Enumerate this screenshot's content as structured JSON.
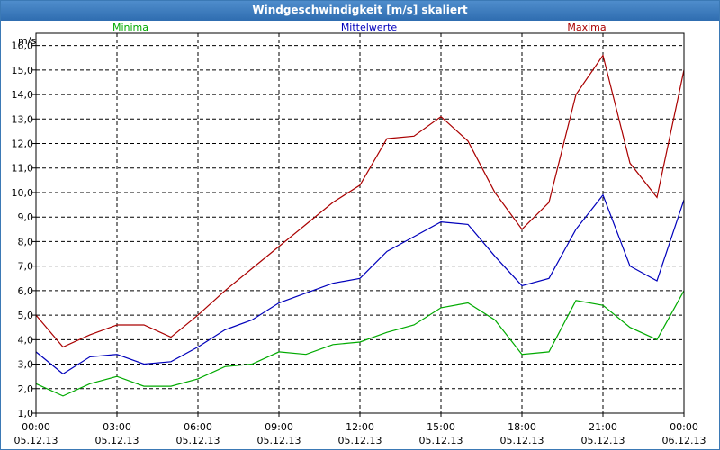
{
  "window": {
    "title": "Windgeschwindigkeit [m/s] skaliert"
  },
  "chart_data": {
    "type": "line",
    "title": "Windgeschwindigkeit [m/s] skaliert",
    "ylabel": "m/s",
    "xlabel": "",
    "ylim": [
      1.0,
      16.5
    ],
    "xlim": [
      0,
      24
    ],
    "grid": true,
    "legend": "top",
    "yticks": [
      "1,0",
      "2,0",
      "3,0",
      "4,0",
      "5,0",
      "6,0",
      "7,0",
      "8,0",
      "9,0",
      "10,0",
      "11,0",
      "12,0",
      "13,0",
      "14,0",
      "15,0",
      "16,0"
    ],
    "ytick_values": [
      1,
      2,
      3,
      4,
      5,
      6,
      7,
      8,
      9,
      10,
      11,
      12,
      13,
      14,
      15,
      16
    ],
    "xticks": [
      {
        "time": "00:00",
        "date": "05.12.13"
      },
      {
        "time": "03:00",
        "date": "05.12.13"
      },
      {
        "time": "06:00",
        "date": "05.12.13"
      },
      {
        "time": "09:00",
        "date": "05.12.13"
      },
      {
        "time": "12:00",
        "date": "05.12.13"
      },
      {
        "time": "15:00",
        "date": "05.12.13"
      },
      {
        "time": "18:00",
        "date": "05.12.13"
      },
      {
        "time": "21:00",
        "date": "05.12.13"
      },
      {
        "time": "00:00",
        "date": "06.12.13"
      }
    ],
    "xtick_hours": [
      0,
      3,
      6,
      9,
      12,
      15,
      18,
      21,
      24
    ],
    "x": [
      0,
      1,
      2,
      3,
      4,
      5,
      6,
      7,
      8,
      9,
      10,
      11,
      12,
      13,
      14,
      15,
      16,
      17,
      18,
      19,
      20,
      21,
      22,
      23,
      24
    ],
    "series": [
      {
        "name": "Minima",
        "color": "#00aa00",
        "values": [
          2.2,
          1.7,
          2.2,
          2.5,
          2.1,
          2.1,
          2.4,
          2.9,
          3.0,
          3.5,
          3.4,
          3.8,
          3.9,
          4.3,
          4.6,
          5.3,
          5.5,
          4.8,
          3.4,
          3.5,
          5.6,
          5.4,
          4.5,
          4.0,
          6.0
        ]
      },
      {
        "name": "Mittelwerte",
        "color": "#0000bb",
        "values": [
          3.5,
          2.6,
          3.3,
          3.4,
          3.0,
          3.1,
          3.7,
          4.4,
          4.8,
          5.5,
          5.9,
          6.3,
          6.5,
          7.6,
          8.2,
          8.8,
          8.7,
          7.4,
          6.2,
          6.5,
          8.5,
          9.9,
          7.0,
          6.4,
          9.7
        ]
      },
      {
        "name": "Maxima",
        "color": "#aa0000",
        "values": [
          5.0,
          3.7,
          4.2,
          4.6,
          4.6,
          4.1,
          5.0,
          6.0,
          6.9,
          7.8,
          8.7,
          9.6,
          10.3,
          12.2,
          12.3,
          13.1,
          12.1,
          10.0,
          8.5,
          9.6,
          14.0,
          15.6,
          11.2,
          9.8,
          15.0
        ]
      }
    ]
  }
}
